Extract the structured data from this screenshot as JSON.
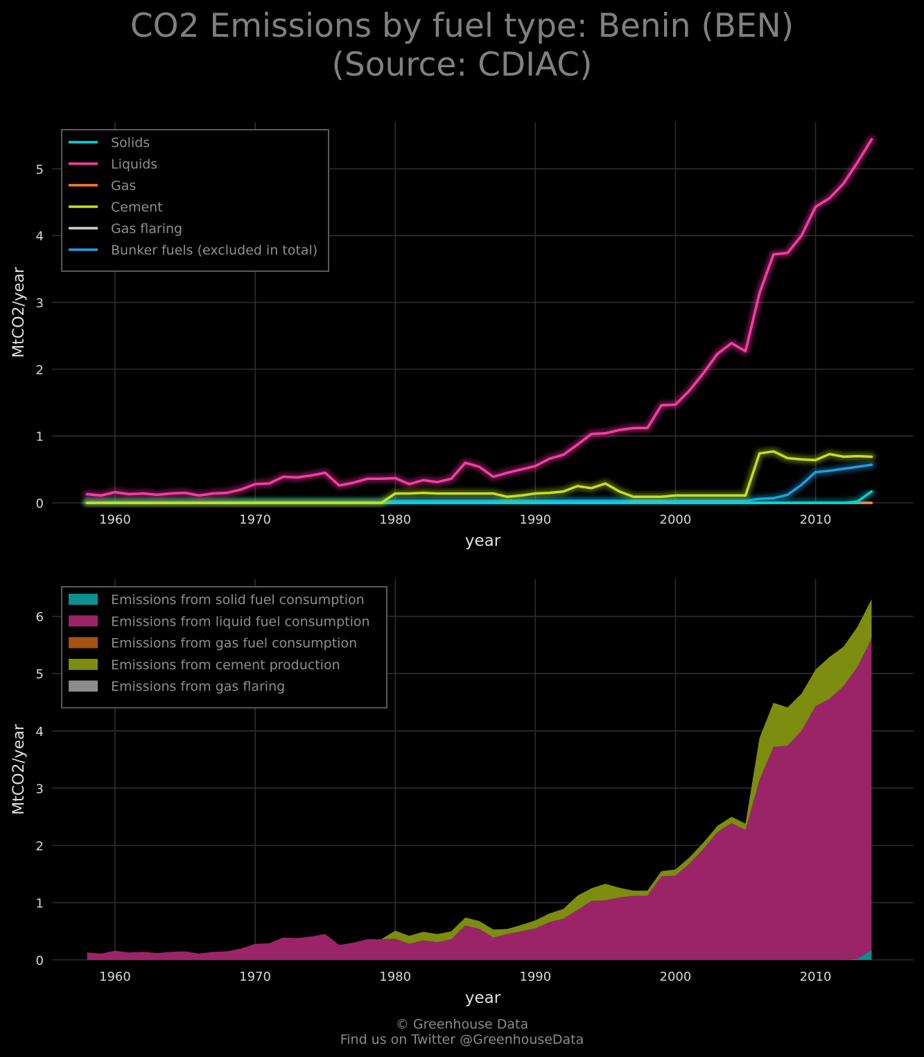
{
  "title_line1": "CO2 Emissions by fuel type: Benin (BEN)",
  "title_line2": "(Source: CDIAC)",
  "footer_line1": "© Greenhouse Data",
  "footer_line2": "Find us on Twitter @GreenhouseData",
  "chart_data": [
    {
      "type": "line",
      "xlabel": "year",
      "ylabel": "MtCO2/year",
      "xlim": [
        1955.5,
        2017
      ],
      "ylim": [
        0,
        5.7
      ],
      "xticks": [
        1960,
        1970,
        1980,
        1990,
        2000,
        2010
      ],
      "yticks": [
        0,
        1,
        2,
        3,
        4,
        5
      ],
      "grid": true,
      "legend_position": "top-left",
      "x": [
        1958,
        1959,
        1960,
        1961,
        1962,
        1963,
        1964,
        1965,
        1966,
        1967,
        1968,
        1969,
        1970,
        1971,
        1972,
        1973,
        1974,
        1975,
        1976,
        1977,
        1978,
        1979,
        1980,
        1981,
        1982,
        1983,
        1984,
        1985,
        1986,
        1987,
        1988,
        1989,
        1990,
        1991,
        1992,
        1993,
        1994,
        1995,
        1996,
        1997,
        1998,
        1999,
        2000,
        2001,
        2002,
        2003,
        2004,
        2005,
        2006,
        2007,
        2008,
        2009,
        2010,
        2011,
        2012,
        2013,
        2014
      ],
      "series": [
        {
          "name": "Solids",
          "color": "#00d5d5",
          "values": [
            0,
            0,
            0,
            0,
            0,
            0,
            0,
            0,
            0,
            0,
            0,
            0,
            0,
            0,
            0,
            0,
            0,
            0,
            0,
            0,
            0,
            0,
            0,
            0,
            0,
            0,
            0,
            0,
            0,
            0,
            0,
            0,
            0,
            0,
            0,
            0,
            0,
            0,
            0,
            0,
            0,
            0,
            0,
            0,
            0,
            0,
            0,
            0,
            0,
            0,
            0,
            0,
            0,
            0,
            0,
            0.02,
            0.17
          ]
        },
        {
          "name": "Liquids",
          "color": "#ff3aa8",
          "values": [
            0.13,
            0.11,
            0.16,
            0.13,
            0.14,
            0.12,
            0.14,
            0.15,
            0.11,
            0.14,
            0.15,
            0.2,
            0.28,
            0.29,
            0.39,
            0.38,
            0.41,
            0.45,
            0.26,
            0.3,
            0.36,
            0.36,
            0.37,
            0.28,
            0.34,
            0.31,
            0.36,
            0.6,
            0.54,
            0.39,
            0.45,
            0.5,
            0.55,
            0.66,
            0.72,
            0.87,
            1.03,
            1.04,
            1.09,
            1.12,
            1.12,
            1.46,
            1.47,
            1.68,
            1.94,
            2.23,
            2.39,
            2.27,
            3.14,
            3.72,
            3.74,
            4.0,
            4.43,
            4.56,
            4.78,
            5.1,
            5.44
          ]
        },
        {
          "name": "Gas",
          "color": "#ff7f2a",
          "values": [
            0,
            0,
            0,
            0,
            0,
            0,
            0,
            0,
            0,
            0,
            0,
            0,
            0,
            0,
            0,
            0,
            0,
            0,
            0,
            0,
            0,
            0,
            0,
            0,
            0,
            0,
            0,
            0,
            0,
            0,
            0,
            0,
            0,
            0,
            0,
            0,
            0,
            0,
            0,
            0,
            0,
            0,
            0,
            0,
            0,
            0,
            0,
            0,
            0,
            0,
            0,
            0,
            0,
            0,
            0,
            0,
            0
          ]
        },
        {
          "name": "Cement",
          "color": "#c4e21c",
          "values": [
            0,
            0,
            0,
            0,
            0,
            0,
            0,
            0,
            0,
            0,
            0,
            0,
            0,
            0,
            0,
            0,
            0,
            0,
            0,
            0,
            0,
            0,
            0.14,
            0.14,
            0.15,
            0.14,
            0.14,
            0.14,
            0.14,
            0.14,
            0.09,
            0.11,
            0.14,
            0.15,
            0.17,
            0.25,
            0.22,
            0.29,
            0.17,
            0.09,
            0.09,
            0.09,
            0.11,
            0.11,
            0.11,
            0.11,
            0.11,
            0.11,
            0.74,
            0.77,
            0.67,
            0.65,
            0.64,
            0.73,
            0.69,
            0.7,
            0.69
          ]
        },
        {
          "name": "Gas flaring",
          "color": "#cfcfcf",
          "values": [
            0,
            0,
            0,
            0,
            0,
            0,
            0,
            0,
            0,
            0,
            0,
            0,
            0,
            0,
            0,
            0,
            0,
            0,
            0,
            0,
            0,
            0,
            0,
            0,
            0,
            0,
            0,
            0,
            0,
            0,
            0,
            0,
            0,
            0,
            0,
            0,
            0,
            0,
            0,
            0,
            0,
            0,
            0,
            0,
            0,
            0,
            0,
            0,
            0,
            0,
            0,
            0,
            0,
            0,
            0,
            0,
            0
          ]
        },
        {
          "name": "Bunker fuels (excluded in total)",
          "color": "#1f9fe0",
          "values": [
            0,
            0,
            0,
            0,
            0,
            0,
            0,
            0,
            0,
            0,
            0,
            0,
            0,
            0,
            0,
            0,
            0,
            0,
            0,
            0,
            0,
            0,
            0.03,
            0.03,
            0.03,
            0.03,
            0.03,
            0.03,
            0.03,
            0.03,
            0.03,
            0.03,
            0.03,
            0.03,
            0.03,
            0.03,
            0.03,
            0.03,
            0.03,
            0.03,
            0.03,
            0.03,
            0.03,
            0.03,
            0.03,
            0.03,
            0.03,
            0.03,
            0.06,
            0.07,
            0.12,
            0.27,
            0.46,
            0.48,
            0.51,
            0.54,
            0.57
          ]
        }
      ]
    },
    {
      "type": "area",
      "stacked": true,
      "xlabel": "year",
      "ylabel": "MtCO2/year",
      "xlim": [
        1955.5,
        2017
      ],
      "ylim": [
        0,
        6.65
      ],
      "xticks": [
        1960,
        1970,
        1980,
        1990,
        2000,
        2010
      ],
      "yticks": [
        0,
        1,
        2,
        3,
        4,
        5,
        6
      ],
      "grid": true,
      "legend_position": "top-left",
      "x": [
        1958,
        1959,
        1960,
        1961,
        1962,
        1963,
        1964,
        1965,
        1966,
        1967,
        1968,
        1969,
        1970,
        1971,
        1972,
        1973,
        1974,
        1975,
        1976,
        1977,
        1978,
        1979,
        1980,
        1981,
        1982,
        1983,
        1984,
        1985,
        1986,
        1987,
        1988,
        1989,
        1990,
        1991,
        1992,
        1993,
        1994,
        1995,
        1996,
        1997,
        1998,
        1999,
        2000,
        2001,
        2002,
        2003,
        2004,
        2005,
        2006,
        2007,
        2008,
        2009,
        2010,
        2011,
        2012,
        2013,
        2014
      ],
      "series": [
        {
          "name": "Emissions from solid fuel consumption",
          "color": "#0b8f8f",
          "values": [
            0,
            0,
            0,
            0,
            0,
            0,
            0,
            0,
            0,
            0,
            0,
            0,
            0,
            0,
            0,
            0,
            0,
            0,
            0,
            0,
            0,
            0,
            0,
            0,
            0,
            0,
            0,
            0,
            0,
            0,
            0,
            0,
            0,
            0,
            0,
            0,
            0,
            0,
            0,
            0,
            0,
            0,
            0,
            0,
            0,
            0,
            0,
            0,
            0,
            0,
            0,
            0,
            0,
            0,
            0,
            0.02,
            0.17
          ]
        },
        {
          "name": "Emissions from liquid fuel consumption",
          "color": "#9b2468",
          "values": [
            0.13,
            0.11,
            0.16,
            0.13,
            0.14,
            0.12,
            0.14,
            0.15,
            0.11,
            0.14,
            0.15,
            0.2,
            0.28,
            0.29,
            0.39,
            0.38,
            0.41,
            0.45,
            0.26,
            0.3,
            0.36,
            0.36,
            0.37,
            0.28,
            0.34,
            0.31,
            0.36,
            0.6,
            0.54,
            0.39,
            0.45,
            0.5,
            0.55,
            0.66,
            0.72,
            0.87,
            1.03,
            1.04,
            1.09,
            1.12,
            1.12,
            1.46,
            1.47,
            1.68,
            1.94,
            2.23,
            2.39,
            2.27,
            3.14,
            3.72,
            3.74,
            4.0,
            4.43,
            4.56,
            4.78,
            5.1,
            5.44
          ]
        },
        {
          "name": "Emissions from gas fuel consumption",
          "color": "#a65210",
          "values": [
            0,
            0,
            0,
            0,
            0,
            0,
            0,
            0,
            0,
            0,
            0,
            0,
            0,
            0,
            0,
            0,
            0,
            0,
            0,
            0,
            0,
            0,
            0,
            0,
            0,
            0,
            0,
            0,
            0,
            0,
            0,
            0,
            0,
            0,
            0,
            0,
            0,
            0,
            0,
            0,
            0,
            0,
            0,
            0,
            0,
            0,
            0,
            0,
            0,
            0,
            0,
            0,
            0,
            0,
            0,
            0,
            0
          ]
        },
        {
          "name": "Emissions from cement production",
          "color": "#7c8d10",
          "values": [
            0,
            0,
            0,
            0,
            0,
            0,
            0,
            0,
            0,
            0,
            0,
            0,
            0,
            0,
            0,
            0,
            0,
            0,
            0,
            0,
            0,
            0,
            0.14,
            0.14,
            0.15,
            0.14,
            0.14,
            0.14,
            0.14,
            0.14,
            0.09,
            0.11,
            0.14,
            0.15,
            0.17,
            0.25,
            0.22,
            0.29,
            0.17,
            0.09,
            0.09,
            0.09,
            0.11,
            0.11,
            0.11,
            0.11,
            0.11,
            0.11,
            0.74,
            0.77,
            0.67,
            0.65,
            0.64,
            0.73,
            0.69,
            0.7,
            0.69
          ]
        },
        {
          "name": "Emissions from gas flaring",
          "color": "#8c8c8c",
          "values": [
            0,
            0,
            0,
            0,
            0,
            0,
            0,
            0,
            0,
            0,
            0,
            0,
            0,
            0,
            0,
            0,
            0,
            0,
            0,
            0,
            0,
            0,
            0,
            0,
            0,
            0,
            0,
            0,
            0,
            0,
            0,
            0,
            0,
            0,
            0,
            0,
            0,
            0,
            0,
            0,
            0,
            0,
            0,
            0,
            0,
            0,
            0,
            0,
            0,
            0,
            0,
            0,
            0,
            0,
            0,
            0,
            0
          ]
        }
      ]
    }
  ]
}
